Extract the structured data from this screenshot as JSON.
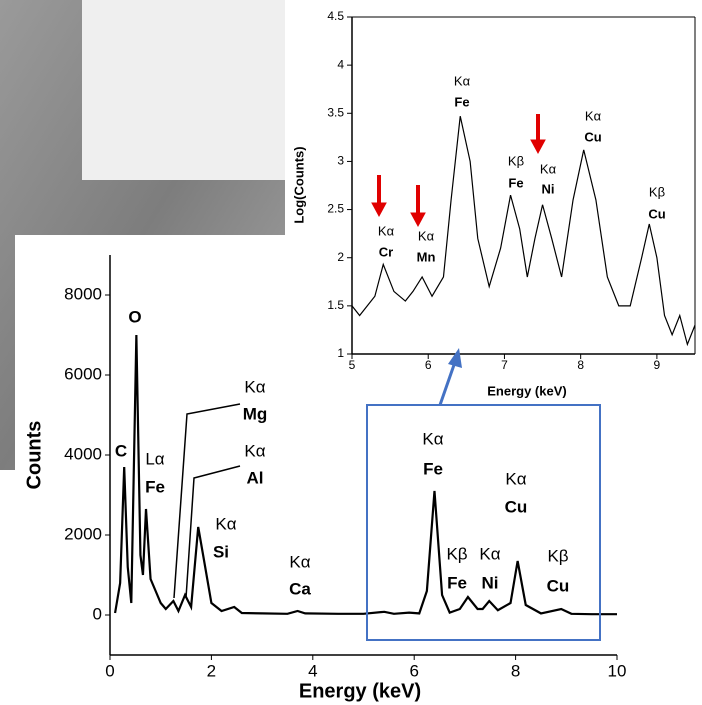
{
  "chart_data": [
    {
      "type": "line",
      "x_label": "Energy (keV)",
      "y_label": "Counts",
      "xlim": [
        0,
        10
      ],
      "xticks": [
        0,
        2,
        4,
        6,
        8,
        10
      ],
      "ylim": [
        -1000,
        9000
      ],
      "yticks": [
        0,
        2000,
        4000,
        6000,
        8000
      ],
      "series": [
        {
          "name": "Counts",
          "color": "#000000",
          "x": [
            0.1,
            0.2,
            0.28,
            0.35,
            0.42,
            0.52,
            0.6,
            0.65,
            0.71,
            0.8,
            0.9,
            1.0,
            1.1,
            1.25,
            1.35,
            1.48,
            1.6,
            1.74,
            1.85,
            2.0,
            2.2,
            2.45,
            2.6,
            3.0,
            3.5,
            3.7,
            3.85,
            4.5,
            5.0,
            5.41,
            5.6,
            5.9,
            6.1,
            6.25,
            6.4,
            6.55,
            6.7,
            6.9,
            7.06,
            7.25,
            7.35,
            7.48,
            7.65,
            7.9,
            8.04,
            8.2,
            8.5,
            8.9,
            9.1,
            9.5,
            10.0
          ],
          "values": [
            50,
            800,
            3700,
            1200,
            300,
            7000,
            1500,
            1000,
            2650,
            900,
            600,
            300,
            150,
            350,
            100,
            500,
            200,
            2200,
            1400,
            300,
            100,
            200,
            50,
            40,
            30,
            100,
            40,
            30,
            30,
            80,
            30,
            60,
            40,
            600,
            3100,
            500,
            60,
            150,
            450,
            150,
            150,
            350,
            120,
            300,
            1350,
            250,
            40,
            150,
            30,
            20,
            20
          ]
        }
      ],
      "annotations": [
        "C",
        "O",
        "Lα",
        "Fe",
        "Kα",
        "Mg",
        "Kα",
        "Al",
        "Kα",
        "Si",
        "Kα",
        "Ca",
        "Kα",
        "Fe",
        "Kβ",
        "Fe",
        "Kα",
        "Ni",
        "Kα",
        "Cu",
        "Kβ",
        "Cu"
      ]
    },
    {
      "type": "line",
      "x_label": "Energy (keV)",
      "y_label": "Log(Counts)",
      "xlim": [
        5,
        9.5
      ],
      "xticks": [
        5,
        6,
        7,
        8,
        9
      ],
      "ylim": [
        1,
        4.5
      ],
      "yticks": [
        1,
        1.5,
        2,
        2.5,
        3,
        3.5,
        4,
        4.5
      ],
      "series": [
        {
          "name": "Log(Counts)",
          "color": "#000000",
          "x": [
            5.0,
            5.1,
            5.2,
            5.3,
            5.41,
            5.55,
            5.7,
            5.8,
            5.92,
            6.05,
            6.2,
            6.3,
            6.42,
            6.55,
            6.65,
            6.8,
            6.95,
            7.08,
            7.2,
            7.3,
            7.4,
            7.5,
            7.62,
            7.75,
            7.9,
            8.04,
            8.2,
            8.35,
            8.5,
            8.65,
            8.8,
            8.9,
            9.0,
            9.1,
            9.2,
            9.3,
            9.4,
            9.5
          ],
          "values": [
            1.5,
            1.4,
            1.5,
            1.6,
            1.93,
            1.65,
            1.55,
            1.65,
            1.8,
            1.6,
            1.8,
            2.6,
            3.47,
            3.0,
            2.2,
            1.7,
            2.1,
            2.65,
            2.3,
            1.8,
            2.2,
            2.55,
            2.2,
            1.8,
            2.6,
            3.12,
            2.6,
            1.8,
            1.5,
            1.5,
            2.0,
            2.35,
            2.0,
            1.4,
            1.2,
            1.4,
            1.1,
            1.3
          ]
        }
      ],
      "annotations": [
        "Kα",
        "Cr",
        "Kα",
        "Mn",
        "Kα",
        "Fe",
        "Kβ",
        "Fe",
        "Kα",
        "Ni",
        "Kα",
        "Cu",
        "Kβ",
        "Cu"
      ]
    }
  ]
}
